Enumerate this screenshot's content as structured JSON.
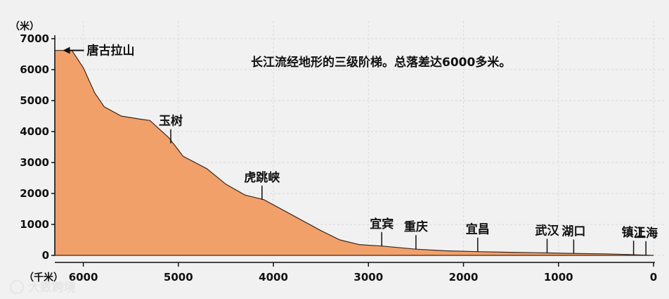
{
  "chart_data": {
    "type": "area",
    "title": "长江流经地形的三级阶梯。总落差达6000多米。",
    "ylabel": "（米）",
    "xlabel": "（千米）",
    "x_reversed": true,
    "xlim": [
      6300,
      0
    ],
    "ylim": [
      0,
      7000
    ],
    "x_ticks": [
      "6000",
      "5000",
      "4000",
      "3000",
      "2000",
      "1000",
      "0"
    ],
    "y_ticks": [
      "0",
      "1000",
      "2000",
      "3000",
      "4000",
      "5000",
      "6000",
      "7000"
    ],
    "grid": true,
    "fill_color": "#f2a06a",
    "profile": [
      {
        "x": 6300,
        "y": 0
      },
      {
        "x": 6300,
        "y": 6621
      },
      {
        "x": 6300,
        "y": 6621
      },
      {
        "x": 6120,
        "y": 6621
      },
      {
        "x": 6000,
        "y": 6060
      },
      {
        "x": 5880,
        "y": 5247
      },
      {
        "x": 5780,
        "y": 4800
      },
      {
        "x": 5600,
        "y": 4500
      },
      {
        "x": 5400,
        "y": 4400
      },
      {
        "x": 5300,
        "y": 4360
      },
      {
        "x": 5100,
        "y": 3800
      },
      {
        "x": 4950,
        "y": 3200
      },
      {
        "x": 4700,
        "y": 2800
      },
      {
        "x": 4500,
        "y": 2300
      },
      {
        "x": 4300,
        "y": 1950
      },
      {
        "x": 4100,
        "y": 1800
      },
      {
        "x": 3800,
        "y": 1300
      },
      {
        "x": 3500,
        "y": 800
      },
      {
        "x": 3300,
        "y": 500
      },
      {
        "x": 3100,
        "y": 350
      },
      {
        "x": 2850,
        "y": 300
      },
      {
        "x": 2500,
        "y": 200
      },
      {
        "x": 2200,
        "y": 150
      },
      {
        "x": 1850,
        "y": 120
      },
      {
        "x": 1500,
        "y": 100
      },
      {
        "x": 1100,
        "y": 80
      },
      {
        "x": 800,
        "y": 60
      },
      {
        "x": 500,
        "y": 50
      },
      {
        "x": 200,
        "y": 20
      },
      {
        "x": 0,
        "y": 0
      }
    ],
    "annotations": [
      {
        "label": "唐古拉山",
        "x": 6200,
        "y": 6621,
        "style": "arrow"
      },
      {
        "label": "玉树",
        "x": 5080,
        "y": 3620,
        "style": "tick"
      },
      {
        "label": "虎跳峡",
        "x": 4120,
        "y": 1800,
        "style": "tick"
      },
      {
        "label": "宜宾",
        "x": 2860,
        "y": 300,
        "style": "tick"
      },
      {
        "label": "重庆",
        "x": 2500,
        "y": 200,
        "style": "tick"
      },
      {
        "label": "宜昌",
        "x": 1850,
        "y": 120,
        "style": "tick"
      },
      {
        "label": "武汉",
        "x": 1120,
        "y": 80,
        "style": "tick"
      },
      {
        "label": "湖口",
        "x": 840,
        "y": 60,
        "style": "tick"
      },
      {
        "label": "镇江",
        "x": 210,
        "y": 20,
        "style": "tick"
      },
      {
        "label": "上海",
        "x": 80,
        "y": 5,
        "style": "tick"
      }
    ]
  },
  "watermark": {
    "text": "大数跨境"
  }
}
